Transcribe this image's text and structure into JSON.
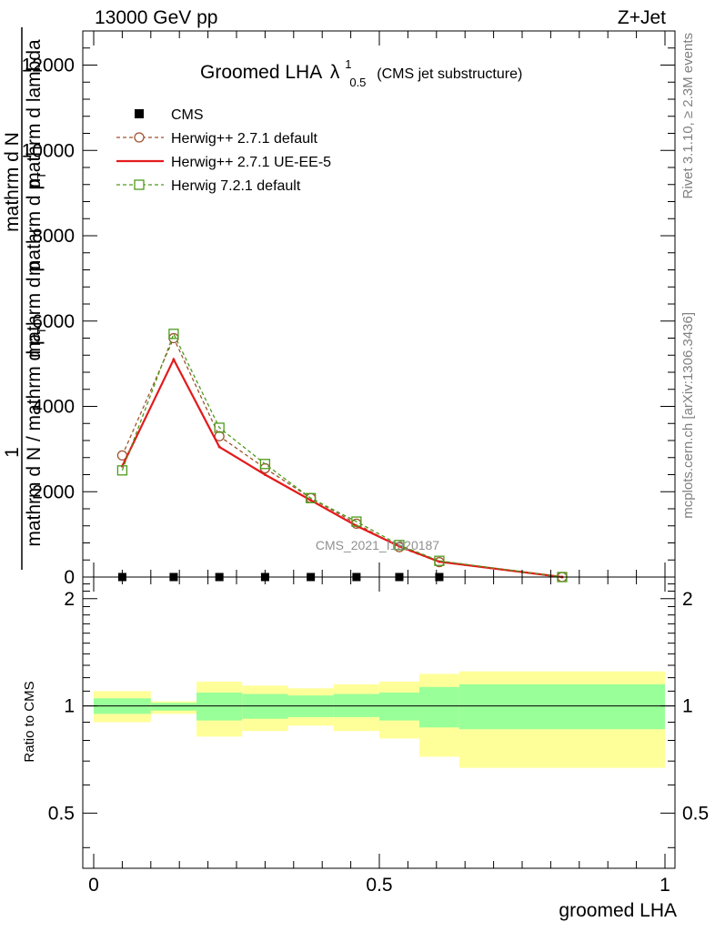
{
  "header": {
    "energy_label": "13000 GeV pp",
    "process_label": "Z+Jet"
  },
  "side_labels": {
    "rivet": "Rivet 3.1.10, ≥ 2.3M events",
    "mcplots": "mcplots.cern.ch [arXiv:1306.3436]"
  },
  "chart_data": [
    {
      "type": "line",
      "title_main": "Groomed LHA",
      "title_lambda": "λ",
      "title_sup": "1",
      "title_sub": "0.5",
      "title_suffix": "(CMS jet substructure)",
      "ylabel_parts": {
        "one": "1",
        "num": "mathrm d N",
        "den_top": "mathrm d p",
        "den_top_sub": "T",
        "den_bottom": "mathrm d N / mathrm d p",
        "den_bottom_sub": "T",
        "den_lambda": "mathrm d lambda",
        "den_mid": "mathrm d p"
      },
      "watermark": "CMS_2021_I1920187",
      "xlim": [
        0,
        1
      ],
      "ylim": [
        0,
        12800
      ],
      "y_ticks": [
        0,
        2000,
        4000,
        6000,
        8000,
        10000,
        12000
      ],
      "y_tick_labels": [
        "0",
        "2000",
        "4000",
        "6000",
        "8000",
        "10000",
        "12000"
      ],
      "legend_position": "top-left",
      "series": [
        {
          "name": "CMS",
          "color": "#000000",
          "marker": "square-filled",
          "x": [
            0.05,
            0.14,
            0.22,
            0.3,
            0.38,
            0.46,
            0.535,
            0.605
          ],
          "y": [
            0,
            0,
            0,
            0,
            0,
            0,
            0,
            0
          ]
        },
        {
          "name": "Herwig++ 2.7.1 default",
          "color": "#a0522d",
          "marker": "circle-open",
          "dashed": true,
          "x": [
            0.05,
            0.14,
            0.22,
            0.3,
            0.38,
            0.46,
            0.535,
            0.605,
            0.82
          ],
          "y": [
            2850,
            5600,
            3300,
            2550,
            1850,
            1250,
            700,
            350,
            0
          ]
        },
        {
          "name": "Herwig++ 2.7.1 UE-EE-5",
          "color": "#e31a1c",
          "marker": "none",
          "dashed": false,
          "x": [
            0.05,
            0.14,
            0.22,
            0.3,
            0.38,
            0.46,
            0.535,
            0.605,
            0.82
          ],
          "y": [
            2600,
            5100,
            3050,
            2400,
            1800,
            1200,
            720,
            360,
            0
          ]
        },
        {
          "name": "Herwig 7.2.1 default",
          "color": "#4d9a1c",
          "marker": "square-open",
          "dashed": true,
          "x": [
            0.05,
            0.14,
            0.22,
            0.3,
            0.38,
            0.46,
            0.535,
            0.605,
            0.82
          ],
          "y": [
            2500,
            5700,
            3500,
            2650,
            1850,
            1300,
            750,
            380,
            0
          ]
        }
      ]
    },
    {
      "type": "area",
      "ylabel": "Ratio to CMS",
      "xlabel": "groomed LHA",
      "xlim": [
        0,
        1
      ],
      "ylim": [
        0.35,
        2.3
      ],
      "y_ticks": [
        0.5,
        1,
        2
      ],
      "y_tick_labels": [
        "0.5",
        "1",
        "2"
      ],
      "x_ticks": [
        0,
        0.5,
        1
      ],
      "x_tick_labels": [
        "0",
        "0.5",
        "1"
      ],
      "reference_line": 1,
      "bands": [
        {
          "x0": 0.0,
          "x1": 0.1,
          "inner": [
            0.95,
            1.05
          ],
          "outer": [
            0.9,
            1.1
          ]
        },
        {
          "x0": 0.1,
          "x1": 0.18,
          "inner": [
            0.97,
            1.02
          ],
          "outer": [
            0.95,
            1.03
          ]
        },
        {
          "x0": 0.18,
          "x1": 0.26,
          "inner": [
            0.91,
            1.09
          ],
          "outer": [
            0.82,
            1.17
          ]
        },
        {
          "x0": 0.26,
          "x1": 0.34,
          "inner": [
            0.92,
            1.08
          ],
          "outer": [
            0.85,
            1.14
          ]
        },
        {
          "x0": 0.34,
          "x1": 0.42,
          "inner": [
            0.93,
            1.07
          ],
          "outer": [
            0.88,
            1.12
          ]
        },
        {
          "x0": 0.42,
          "x1": 0.5,
          "inner": [
            0.93,
            1.08
          ],
          "outer": [
            0.85,
            1.15
          ]
        },
        {
          "x0": 0.5,
          "x1": 0.57,
          "inner": [
            0.91,
            1.09
          ],
          "outer": [
            0.81,
            1.17
          ]
        },
        {
          "x0": 0.57,
          "x1": 0.64,
          "inner": [
            0.87,
            1.13
          ],
          "outer": [
            0.72,
            1.23
          ]
        },
        {
          "x0": 0.64,
          "x1": 1.0,
          "inner": [
            0.86,
            1.15
          ],
          "outer": [
            0.67,
            1.25
          ]
        }
      ],
      "colors": {
        "inner": "#99ff99",
        "outer": "#ffff99"
      }
    }
  ]
}
